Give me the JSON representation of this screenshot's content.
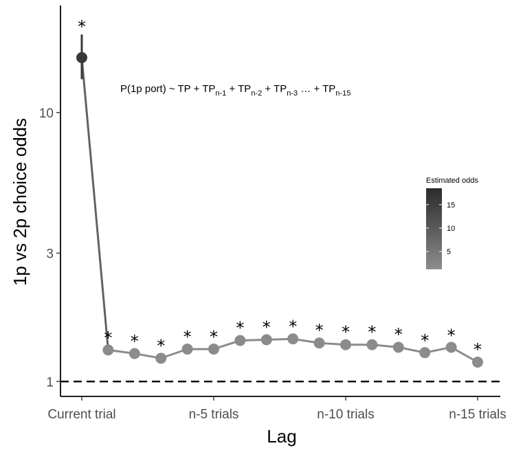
{
  "chart_data": {
    "type": "line",
    "ylabel": "1p vs 2p choice odds",
    "xlabel": "Lag",
    "y_scale": "log",
    "ylim": [
      0.88,
      25
    ],
    "y_ticks": [
      1,
      3,
      10
    ],
    "x_tick_labels": [
      "Current trial",
      "n-5 trials",
      "n-10 trials",
      "n-15 trials"
    ],
    "x_tick_positions": [
      0,
      5,
      10,
      15
    ],
    "reference_line": 1,
    "annotation_parts": [
      "P(1p port) ~ TP + TP",
      "n-1",
      " +  TP",
      "n-2",
      " + TP",
      "n-3",
      " … + TP",
      "n-15"
    ],
    "significance_marker": "*",
    "legend": {
      "title": "Estimated odds",
      "ticks": [
        5,
        10,
        15
      ],
      "range": [
        1.2,
        18.5
      ],
      "color_low": "#8c8c8c",
      "color_high": "#2b2b2b"
    },
    "series": [
      {
        "lag": [
          0,
          1,
          2,
          3,
          4,
          5,
          6,
          7,
          8,
          9,
          10,
          11,
          12,
          13,
          14,
          15
        ],
        "odds": [
          16.0,
          1.31,
          1.27,
          1.22,
          1.32,
          1.32,
          1.42,
          1.43,
          1.44,
          1.39,
          1.37,
          1.37,
          1.34,
          1.28,
          1.34,
          1.18
        ],
        "err_low": [
          13.3,
          1.26,
          1.22,
          1.17,
          1.27,
          1.27,
          1.37,
          1.38,
          1.39,
          1.34,
          1.32,
          1.32,
          1.29,
          1.23,
          1.29,
          1.13
        ],
        "err_high": [
          19.5,
          1.36,
          1.32,
          1.27,
          1.37,
          1.37,
          1.48,
          1.49,
          1.5,
          1.45,
          1.43,
          1.43,
          1.4,
          1.33,
          1.39,
          1.23
        ],
        "significant": [
          true,
          true,
          true,
          true,
          true,
          true,
          true,
          true,
          true,
          true,
          true,
          true,
          true,
          true,
          true,
          true
        ]
      }
    ]
  }
}
